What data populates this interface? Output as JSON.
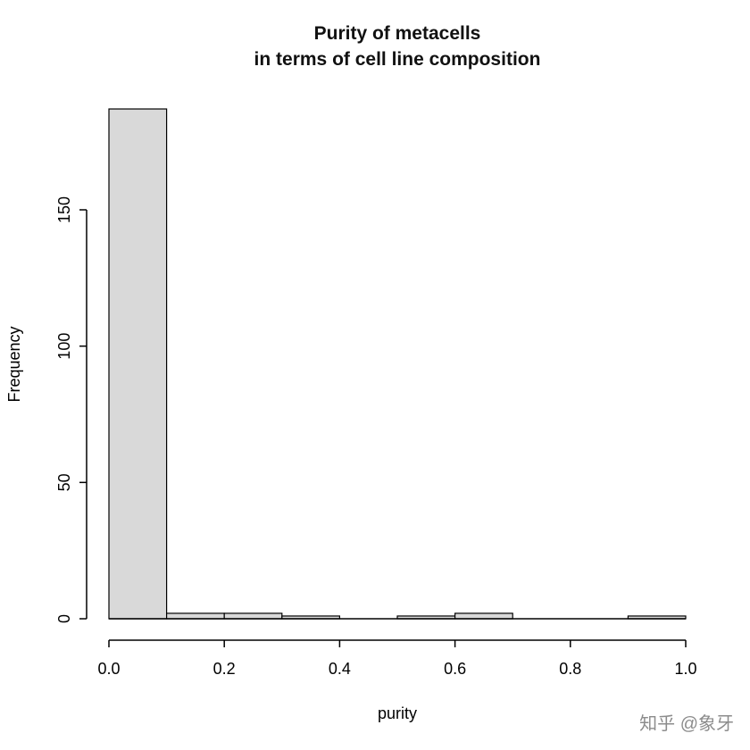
{
  "watermark": "知乎 @象牙",
  "chart_data": {
    "type": "bar",
    "subtype": "histogram",
    "title": "Purity of metacells\nin terms of cell line composition",
    "title_lines": [
      "Purity of metacells",
      "in terms of cell line composition"
    ],
    "xlabel": "purity",
    "ylabel": "Frequency",
    "bin_edges": [
      0.0,
      0.1,
      0.2,
      0.3,
      0.4,
      0.5,
      0.6,
      0.7,
      0.8,
      0.9,
      1.0
    ],
    "values": [
      187,
      2,
      2,
      1,
      0,
      1,
      2,
      0,
      0,
      1
    ],
    "xlim": [
      0.0,
      1.0
    ],
    "ylim": [
      0,
      190
    ],
    "x_ticks": [
      0.0,
      0.2,
      0.4,
      0.6,
      0.8,
      1.0
    ],
    "y_ticks": [
      0,
      50,
      100,
      150
    ],
    "bar_fill": "#d9d9d9",
    "bar_stroke": "#000000",
    "grid": false,
    "legend": false
  }
}
